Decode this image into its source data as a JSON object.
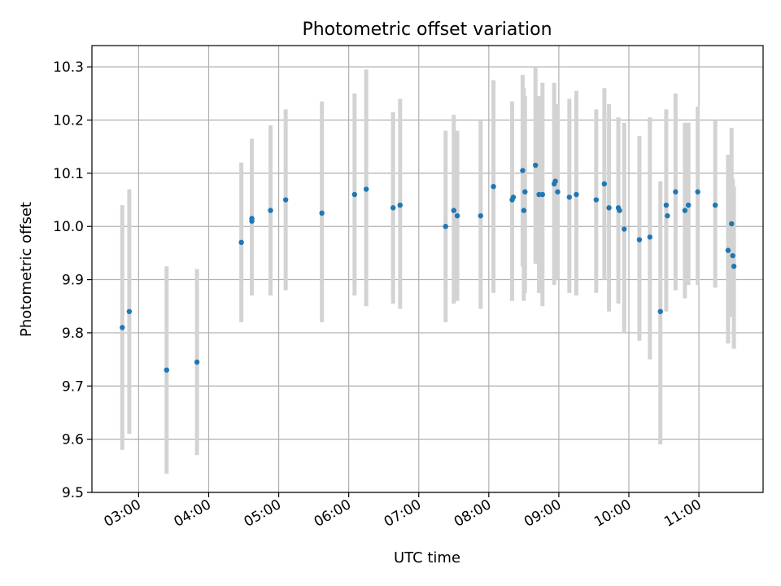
{
  "chart_data": {
    "type": "scatter",
    "title": "Photometric offset variation",
    "xlabel": "UTC time",
    "ylabel": "Photometric offset",
    "xlim": [
      "02:20",
      "11:55"
    ],
    "ylim": [
      9.5,
      10.34
    ],
    "grid": true,
    "x_ticks": [
      "03:00",
      "04:00",
      "05:00",
      "06:00",
      "07:00",
      "08:00",
      "09:00",
      "10:00",
      "11:00"
    ],
    "y_ticks": [
      9.5,
      9.6,
      9.7,
      9.8,
      9.9,
      10.0,
      10.1,
      10.2,
      10.3
    ],
    "colors": {
      "point": "#1f77b4",
      "errorbar": "#d3d3d3",
      "grid": "#b0b0b0"
    },
    "series": [
      {
        "points": [
          {
            "x": "02:46",
            "y": 9.81,
            "ylo": 9.58,
            "yhi": 10.04
          },
          {
            "x": "02:52",
            "y": 9.84,
            "ylo": 9.61,
            "yhi": 10.07
          },
          {
            "x": "03:24",
            "y": 9.73,
            "ylo": 9.535,
            "yhi": 9.925
          },
          {
            "x": "03:50",
            "y": 9.745,
            "ylo": 9.57,
            "yhi": 9.92
          },
          {
            "x": "04:28",
            "y": 9.97,
            "ylo": 9.82,
            "yhi": 10.12
          },
          {
            "x": "04:37",
            "y": 10.01,
            "ylo": 9.87,
            "yhi": 10.165
          },
          {
            "x": "04:37",
            "y": 10.015
          },
          {
            "x": "04:53",
            "y": 10.03,
            "ylo": 9.87,
            "yhi": 10.19
          },
          {
            "x": "05:06",
            "y": 10.05,
            "ylo": 9.88,
            "yhi": 10.22
          },
          {
            "x": "05:37",
            "y": 10.025,
            "ylo": 9.82,
            "yhi": 10.235
          },
          {
            "x": "06:05",
            "y": 10.06,
            "ylo": 9.87,
            "yhi": 10.25
          },
          {
            "x": "06:15",
            "y": 10.07,
            "ylo": 9.85,
            "yhi": 10.295
          },
          {
            "x": "06:38",
            "y": 10.035,
            "ylo": 9.855,
            "yhi": 10.215
          },
          {
            "x": "06:44",
            "y": 10.04,
            "ylo": 9.845,
            "yhi": 10.24
          },
          {
            "x": "07:23",
            "y": 10.0,
            "ylo": 9.82,
            "yhi": 10.18
          },
          {
            "x": "07:30",
            "y": 10.03,
            "ylo": 9.855,
            "yhi": 10.21
          },
          {
            "x": "07:33",
            "y": 10.02,
            "ylo": 9.86,
            "yhi": 10.18
          },
          {
            "x": "07:53",
            "y": 10.02,
            "ylo": 9.845,
            "yhi": 10.2
          },
          {
            "x": "08:04",
            "y": 10.075,
            "ylo": 9.875,
            "yhi": 10.275
          },
          {
            "x": "08:20",
            "y": 10.05,
            "ylo": 9.86,
            "yhi": 10.235
          },
          {
            "x": "08:21",
            "y": 10.055
          },
          {
            "x": "08:29",
            "y": 10.105,
            "ylo": 9.925,
            "yhi": 10.285
          },
          {
            "x": "08:30",
            "y": 10.03,
            "ylo": 9.86,
            "yhi": 10.26
          },
          {
            "x": "08:31",
            "y": 10.065,
            "ylo": 9.875,
            "yhi": 10.245
          },
          {
            "x": "08:40",
            "y": 10.115,
            "ylo": 9.93,
            "yhi": 10.3
          },
          {
            "x": "08:43",
            "y": 10.06,
            "ylo": 9.875,
            "yhi": 10.245
          },
          {
            "x": "08:46",
            "y": 10.06,
            "ylo": 9.85,
            "yhi": 10.27
          },
          {
            "x": "08:56",
            "y": 10.08,
            "ylo": 9.89,
            "yhi": 10.27
          },
          {
            "x": "08:57",
            "y": 10.085
          },
          {
            "x": "08:59",
            "y": 10.065,
            "ylo": 9.9,
            "yhi": 10.23
          },
          {
            "x": "09:09",
            "y": 10.055,
            "ylo": 9.875,
            "yhi": 10.24
          },
          {
            "x": "09:15",
            "y": 10.06,
            "ylo": 9.87,
            "yhi": 10.255
          },
          {
            "x": "09:32",
            "y": 10.05,
            "ylo": 9.875,
            "yhi": 10.22
          },
          {
            "x": "09:39",
            "y": 10.08,
            "ylo": 9.9,
            "yhi": 10.26
          },
          {
            "x": "09:43",
            "y": 10.035,
            "ylo": 9.84,
            "yhi": 10.23
          },
          {
            "x": "09:51",
            "y": 10.035,
            "ylo": 9.855,
            "yhi": 10.205
          },
          {
            "x": "09:52",
            "y": 10.03
          },
          {
            "x": "09:56",
            "y": 9.995,
            "ylo": 9.8,
            "yhi": 10.195
          },
          {
            "x": "10:09",
            "y": 9.975,
            "ylo": 9.785,
            "yhi": 10.17
          },
          {
            "x": "10:18",
            "y": 9.98,
            "ylo": 9.75,
            "yhi": 10.205
          },
          {
            "x": "10:27",
            "y": 9.84,
            "ylo": 9.59,
            "yhi": 10.085
          },
          {
            "x": "10:32",
            "y": 10.04,
            "ylo": 9.84,
            "yhi": 10.22
          },
          {
            "x": "10:33",
            "y": 10.02
          },
          {
            "x": "10:40",
            "y": 10.065,
            "ylo": 9.88,
            "yhi": 10.25
          },
          {
            "x": "10:48",
            "y": 10.03,
            "ylo": 9.865,
            "yhi": 10.195
          },
          {
            "x": "10:51",
            "y": 10.04,
            "ylo": 9.89,
            "yhi": 10.195
          },
          {
            "x": "10:59",
            "y": 10.065,
            "ylo": 9.89,
            "yhi": 10.225
          },
          {
            "x": "11:14",
            "y": 10.04,
            "ylo": 9.885,
            "yhi": 10.2
          },
          {
            "x": "11:25",
            "y": 9.955,
            "ylo": 9.78,
            "yhi": 10.135
          },
          {
            "x": "11:28",
            "y": 10.005,
            "ylo": 9.83,
            "yhi": 10.185
          },
          {
            "x": "11:29",
            "y": 9.945,
            "ylo": 9.83,
            "yhi": 10.09
          },
          {
            "x": "11:30",
            "y": 9.925,
            "ylo": 9.77,
            "yhi": 10.075
          }
        ]
      }
    ]
  }
}
